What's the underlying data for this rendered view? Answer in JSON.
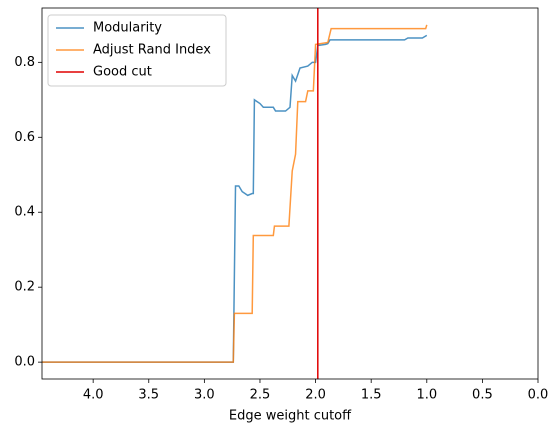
{
  "chart_data": {
    "type": "line",
    "xlabel": "Edge weight cutoff",
    "xlim": [
      4.46,
      0
    ],
    "ylim": [
      -0.045,
      0.945
    ],
    "xticks": [
      {
        "value": 4,
        "label": "4.0"
      },
      3.5,
      {
        "value": 3,
        "label": "3.0"
      },
      2.5,
      {
        "value": 2,
        "label": "2.0"
      },
      1.5,
      {
        "value": 1,
        "label": "1.0"
      },
      0.5,
      {
        "value": 0,
        "label": "0.0"
      }
    ],
    "yticks": [
      {
        "value": 0,
        "label": "0.0"
      },
      0.2,
      0.4,
      0.6,
      0.8
    ],
    "grid": false,
    "legend": "upper left",
    "series": [
      {
        "name": "Modularity",
        "color": "#1f77b4",
        "x": [
          4.46,
          2.74,
          2.72,
          2.69,
          2.66,
          2.61,
          2.57,
          2.56,
          2.55,
          2.5,
          2.47,
          2.41,
          2.38,
          2.36,
          2.27,
          2.23,
          2.21,
          2.18,
          2.14,
          2.07,
          2.03,
          2.0,
          1.98,
          1.91,
          1.89,
          1.87,
          1.2,
          1.17,
          1.04,
          1.0
        ],
        "values": [
          0,
          0,
          0.47,
          0.47,
          0.455,
          0.445,
          0.45,
          0.45,
          0.7,
          0.69,
          0.68,
          0.68,
          0.68,
          0.67,
          0.67,
          0.68,
          0.765,
          0.75,
          0.785,
          0.79,
          0.8,
          0.8,
          0.845,
          0.848,
          0.85,
          0.86,
          0.86,
          0.865,
          0.865,
          0.872
        ]
      },
      {
        "name": "Adjust Rand Index",
        "color": "#ff7f0e",
        "x": [
          4.46,
          2.74,
          2.73,
          2.57,
          2.56,
          2.38,
          2.37,
          2.24,
          2.21,
          2.18,
          2.16,
          2.09,
          2.07,
          2.02,
          2.0,
          1.89,
          1.86,
          1.01,
          1.0
        ],
        "values": [
          0,
          0,
          0.13,
          0.13,
          0.338,
          0.338,
          0.363,
          0.363,
          0.51,
          0.555,
          0.695,
          0.695,
          0.724,
          0.724,
          0.848,
          0.853,
          0.89,
          0.89,
          0.9
        ]
      }
    ],
    "vlines": [
      {
        "name": "Good cut",
        "color": "#e00000",
        "x": 1.98
      }
    ]
  }
}
